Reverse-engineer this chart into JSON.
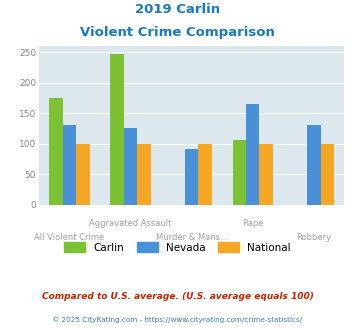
{
  "title_line1": "2019 Carlin",
  "title_line2": "Violent Crime Comparison",
  "categories": [
    "All Violent Crime",
    "Aggravated Assault",
    "Murder & Mans...",
    "Rape",
    "Robbery"
  ],
  "series": {
    "Carlin": [
      175,
      248,
      0,
      106,
      0
    ],
    "Nevada": [
      130,
      125,
      92,
      165,
      130
    ],
    "National": [
      100,
      100,
      100,
      100,
      100
    ]
  },
  "colors": {
    "Carlin": "#7cc134",
    "Nevada": "#4a90d9",
    "National": "#f5a623"
  },
  "ylim": [
    0,
    260
  ],
  "yticks": [
    0,
    50,
    100,
    150,
    200,
    250
  ],
  "bar_width": 0.22,
  "chart_bg": "#dce8ed",
  "footnote1": "Compared to U.S. average. (U.S. average equals 100)",
  "footnote2": "© 2025 CityRating.com - https://www.cityrating.com/crime-statistics/",
  "title_color": "#1a7abf",
  "footnote1_color": "#cc2200",
  "footnote2_color": "#3a7abf",
  "tick_label_color": "#a0a0a0",
  "ytick_color": "#888888"
}
